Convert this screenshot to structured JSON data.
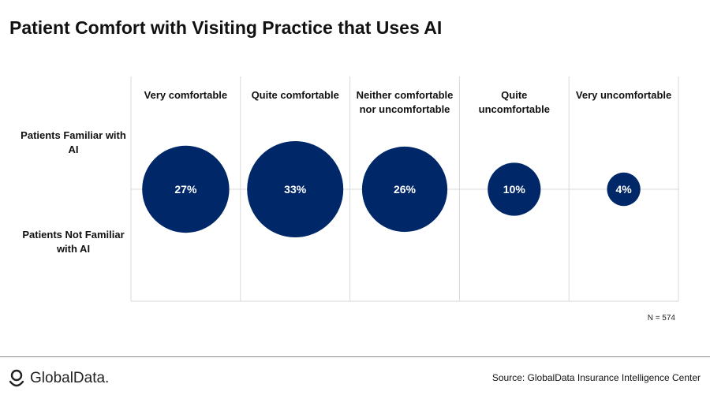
{
  "title": "Patient Comfort with Visiting Practice that Uses AI",
  "row_labels": [
    "Patients Familiar with AI",
    "Patients Not Familiar with AI"
  ],
  "note": "N = 574",
  "source": "Source:  GlobalData Insurance Intelligence Center",
  "logo_text": "GlobalData.",
  "logo_icon": "globaldata-logo-icon",
  "colors": {
    "bubble": "#002868",
    "grid": "#d9d9d9"
  },
  "chart_data": {
    "type": "bubble",
    "categories": [
      "Very comfortable",
      "Quite comfortable",
      "Neither comfortable nor uncomfortable",
      "Quite uncomfortable",
      "Very uncomfortable"
    ],
    "category_label_lines": [
      [
        "Very comfortable"
      ],
      [
        "Quite comfortable"
      ],
      [
        "Neither comfortable",
        "nor uncomfortable"
      ],
      [
        "Quite",
        "uncomfortable"
      ],
      [
        "Very uncomfortable"
      ]
    ],
    "values": [
      27,
      33,
      26,
      10,
      4
    ],
    "value_labels": [
      "27%",
      "33%",
      "26%",
      "10%",
      "4%"
    ],
    "unit": "%",
    "grid": true
  }
}
